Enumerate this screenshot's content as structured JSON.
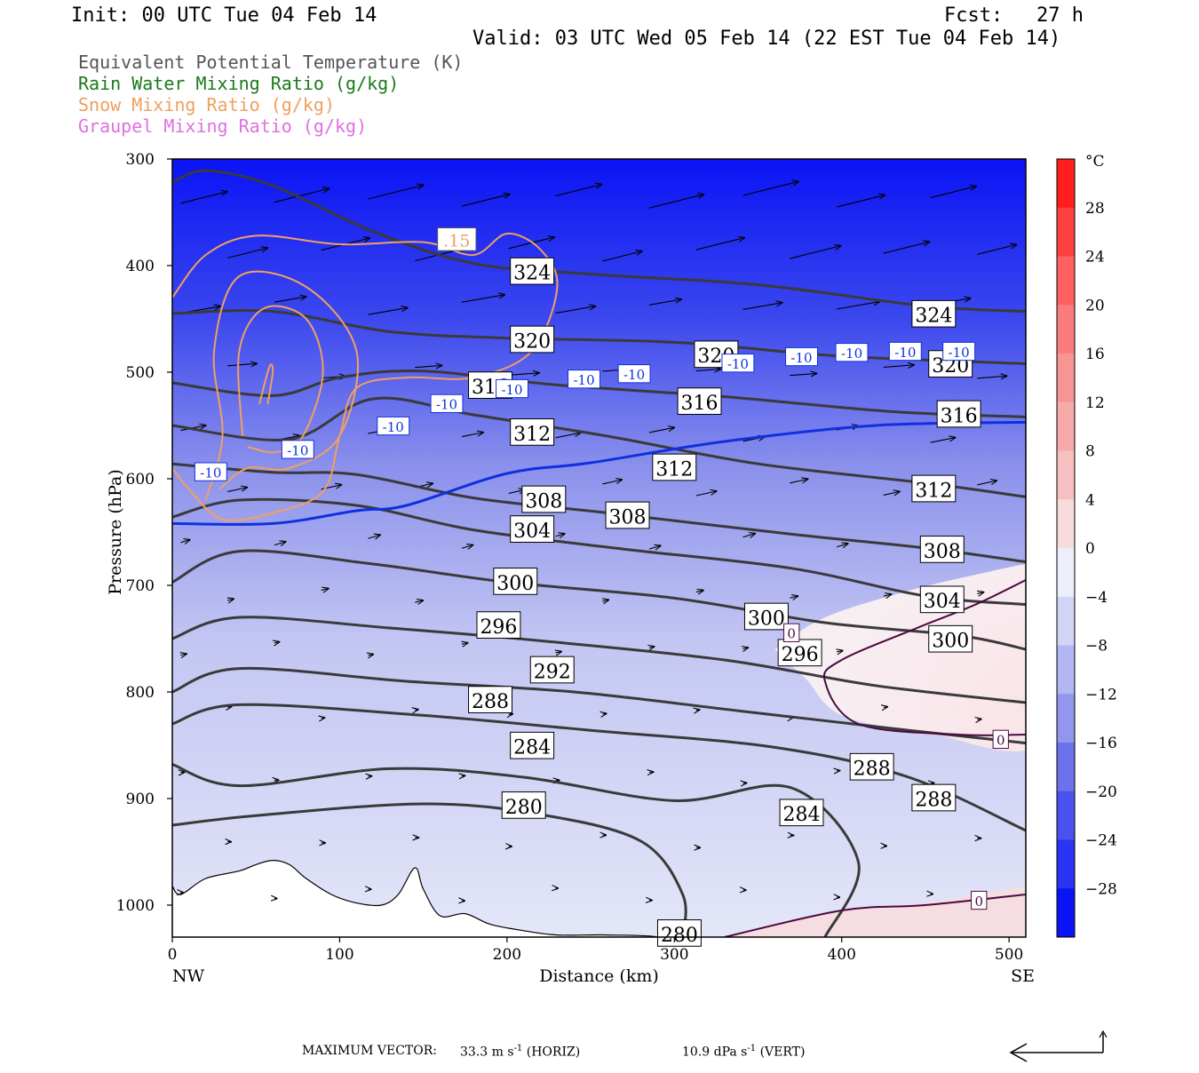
{
  "header": {
    "init": "Init: 00 UTC Tue 04 Feb 14",
    "fcst_label": "Fcst:",
    "fcst_value": "27 h",
    "valid": "Valid: 03 UTC Wed 05 Feb 14 (22 EST Tue 04 Feb 14)"
  },
  "legend": [
    {
      "text": "Equivalent Potential Temperature (K)",
      "color": "#555555"
    },
    {
      "text": "Rain Water Mixing Ratio (g/kg)",
      "color": "#1a7a1a"
    },
    {
      "text": "Snow Mixing Ratio (g/kg)",
      "color": "#f0a060"
    },
    {
      "text": "Graupel Mixing Ratio (g/kg)",
      "color": "#e070e0"
    }
  ],
  "chart_data": {
    "type": "cross-section",
    "xlabel": "Distance (km)",
    "ylabel": "Pressure (hPa)",
    "x_ticks": [
      0,
      100,
      200,
      300,
      400,
      500
    ],
    "xlim": [
      0,
      510
    ],
    "y_ticks": [
      300,
      400,
      500,
      600,
      700,
      800,
      900,
      1000
    ],
    "ylim": [
      300,
      1030
    ],
    "x_end_labels": {
      "left": "NW",
      "right": "SE"
    },
    "colorbar": {
      "unit": "°C",
      "labels": [
        28,
        24,
        20,
        16,
        12,
        8,
        4,
        0,
        -4,
        -8,
        -12,
        -16,
        -20,
        -24,
        -28
      ],
      "range": [
        -32,
        32
      ]
    },
    "theta_e_contours": [
      {
        "label": "324",
        "points": [
          [
            0,
            322
          ],
          [
            20,
            311
          ],
          [
            60,
            325
          ],
          [
            120,
            368
          ],
          [
            180,
            398
          ],
          [
            250,
            408
          ],
          [
            350,
            418
          ],
          [
            450,
            438
          ],
          [
            510,
            443
          ]
        ],
        "labels_at": [
          [
            215,
            406
          ],
          [
            455,
            446
          ]
        ]
      },
      {
        "label": "320",
        "points": [
          [
            0,
            445
          ],
          [
            60,
            443
          ],
          [
            130,
            462
          ],
          [
            200,
            468
          ],
          [
            300,
            472
          ],
          [
            400,
            485
          ],
          [
            510,
            492
          ]
        ],
        "labels_at": [
          [
            215,
            470
          ],
          [
            325,
            484
          ],
          [
            465,
            493
          ]
        ]
      },
      {
        "label": "316",
        "points": [
          [
            0,
            510
          ],
          [
            60,
            522
          ],
          [
            100,
            505
          ],
          [
            150,
            499
          ],
          [
            230,
            512
          ],
          [
            330,
            523
          ],
          [
            430,
            537
          ],
          [
            510,
            542
          ]
        ],
        "labels_at": [
          [
            190,
            513
          ],
          [
            315,
            528
          ],
          [
            470,
            540
          ]
        ]
      },
      {
        "label": "312",
        "points": [
          [
            0,
            550
          ],
          [
            70,
            563
          ],
          [
            120,
            525
          ],
          [
            180,
            540
          ],
          [
            260,
            560
          ],
          [
            350,
            586
          ],
          [
            450,
            604
          ],
          [
            510,
            617
          ]
        ],
        "labels_at": [
          [
            215,
            557
          ],
          [
            300,
            590
          ],
          [
            455,
            610
          ]
        ]
      },
      {
        "label": "308",
        "points": [
          [
            0,
            586
          ],
          [
            60,
            594
          ],
          [
            110,
            596
          ],
          [
            180,
            618
          ],
          [
            260,
            632
          ],
          [
            370,
            652
          ],
          [
            450,
            665
          ],
          [
            510,
            678
          ]
        ],
        "labels_at": [
          [
            222,
            620
          ],
          [
            272,
            635
          ],
          [
            460,
            667
          ]
        ]
      },
      {
        "label": "304",
        "points": [
          [
            0,
            636
          ],
          [
            40,
            620
          ],
          [
            110,
            625
          ],
          [
            180,
            648
          ],
          [
            270,
            666
          ],
          [
            370,
            684
          ],
          [
            450,
            710
          ],
          [
            510,
            718
          ]
        ],
        "labels_at": [
          [
            215,
            648
          ],
          [
            460,
            714
          ]
        ]
      },
      {
        "label": "300",
        "points": [
          [
            0,
            697
          ],
          [
            40,
            668
          ],
          [
            120,
            680
          ],
          [
            200,
            697
          ],
          [
            300,
            712
          ],
          [
            390,
            735
          ],
          [
            470,
            747
          ],
          [
            510,
            760
          ]
        ],
        "labels_at": [
          [
            205,
            697
          ],
          [
            355,
            730
          ],
          [
            465,
            751
          ]
        ]
      },
      {
        "label": "296",
        "points": [
          [
            0,
            750
          ],
          [
            40,
            730
          ],
          [
            130,
            740
          ],
          [
            220,
            752
          ],
          [
            330,
            770
          ],
          [
            420,
            794
          ],
          [
            510,
            810
          ]
        ],
        "labels_at": [
          [
            195,
            738
          ],
          [
            375,
            764
          ]
        ]
      },
      {
        "label": "292",
        "points": [
          [
            0,
            800
          ],
          [
            40,
            778
          ],
          [
            140,
            790
          ],
          [
            240,
            800
          ],
          [
            340,
            818
          ],
          [
            440,
            836
          ],
          [
            510,
            848
          ]
        ],
        "labels_at": [
          [
            227,
            780
          ]
        ]
      },
      {
        "label": "288",
        "points": [
          [
            0,
            830
          ],
          [
            40,
            812
          ],
          [
            150,
            822
          ],
          [
            250,
            836
          ],
          [
            360,
            852
          ],
          [
            440,
            880
          ],
          [
            510,
            930
          ]
        ],
        "labels_at": [
          [
            190,
            808
          ],
          [
            418,
            871
          ],
          [
            455,
            900
          ]
        ]
      },
      {
        "label": "284",
        "points": [
          [
            0,
            868
          ],
          [
            40,
            888
          ],
          [
            130,
            872
          ],
          [
            210,
            880
          ],
          [
            300,
            902
          ],
          [
            370,
            890
          ],
          [
            410,
            960
          ],
          [
            390,
            1030
          ]
        ],
        "labels_at": [
          [
            215,
            851
          ],
          [
            376,
            914
          ]
        ]
      },
      {
        "label": "280",
        "points": [
          [
            0,
            925
          ],
          [
            50,
            916
          ],
          [
            150,
            905
          ],
          [
            220,
            915
          ],
          [
            280,
            940
          ],
          [
            305,
            990
          ],
          [
            305,
            1030
          ]
        ],
        "labels_at": [
          [
            210,
            907
          ],
          [
            303,
            1027
          ]
        ]
      }
    ],
    "isotherms": [
      {
        "label": "-10",
        "points": [
          [
            0,
            642
          ],
          [
            60,
            642
          ],
          [
            110,
            630
          ],
          [
            140,
            625
          ],
          [
            200,
            595
          ],
          [
            250,
            585
          ],
          [
            330,
            565
          ],
          [
            420,
            550
          ],
          [
            510,
            547
          ]
        ],
        "labels_at": [
          [
            23,
            594
          ],
          [
            75,
            573
          ],
          [
            132,
            551
          ],
          [
            164,
            530
          ],
          [
            203,
            516
          ],
          [
            246,
            507
          ],
          [
            276,
            502
          ],
          [
            338,
            492
          ],
          [
            376,
            486
          ],
          [
            406,
            482
          ],
          [
            438,
            481
          ],
          [
            470,
            481
          ]
        ]
      },
      {
        "label": "0",
        "points": [
          [
            510,
            695
          ],
          [
            480,
            718
          ],
          [
            445,
            740
          ],
          [
            400,
            770
          ],
          [
            390,
            790
          ],
          [
            410,
            830
          ],
          [
            470,
            840
          ],
          [
            510,
            840
          ]
        ],
        "labels_at": [
          [
            370,
            745
          ],
          [
            495,
            845
          ]
        ]
      },
      {
        "label": "0",
        "points": [
          [
            330,
            1030
          ],
          [
            400,
            1005
          ],
          [
            450,
            1000
          ],
          [
            510,
            990
          ]
        ],
        "labels_at": [
          [
            482,
            996
          ]
        ]
      }
    ],
    "snow_contours": [
      {
        "label": ".15",
        "points": [
          [
            0,
            430
          ],
          [
            20,
            390
          ],
          [
            50,
            372
          ],
          [
            100,
            380
          ],
          [
            150,
            378
          ],
          [
            180,
            390
          ],
          [
            200,
            370
          ],
          [
            220,
            385
          ],
          [
            230,
            420
          ],
          [
            215,
            480
          ],
          [
            180,
            505
          ],
          [
            140,
            505
          ],
          [
            110,
            515
          ],
          [
            100,
            560
          ],
          [
            90,
            612
          ],
          [
            60,
            632
          ],
          [
            30,
            638
          ],
          [
            10,
            610
          ],
          [
            0,
            590
          ]
        ],
        "labels_at": [
          [
            170,
            376
          ]
        ]
      },
      {
        "label": "",
        "points": [
          [
            20,
            620
          ],
          [
            30,
            560
          ],
          [
            25,
            480
          ],
          [
            40,
            410
          ],
          [
            80,
            420
          ],
          [
            110,
            480
          ],
          [
            100,
            560
          ],
          [
            70,
            590
          ],
          [
            45,
            590
          ],
          [
            28,
            610
          ]
        ]
      },
      {
        "label": "",
        "points": [
          [
            42,
            560
          ],
          [
            40,
            480
          ],
          [
            55,
            440
          ],
          [
            80,
            450
          ],
          [
            90,
            500
          ],
          [
            78,
            560
          ],
          [
            62,
            575
          ],
          [
            45,
            570
          ]
        ]
      },
      {
        "label": "",
        "points": [
          [
            52,
            530
          ],
          [
            58,
            495
          ],
          [
            60,
            500
          ],
          [
            57,
            530
          ]
        ]
      }
    ],
    "footer": {
      "max_vector_label": "MAXIMUM VECTOR:",
      "horiz_value": "33.3 m s",
      "horiz_exp": "-1",
      "horiz_tag": "(HORIZ)",
      "vert_value": "10.9 dPa s",
      "vert_exp": "-1",
      "vert_tag": "(VERT)"
    }
  }
}
